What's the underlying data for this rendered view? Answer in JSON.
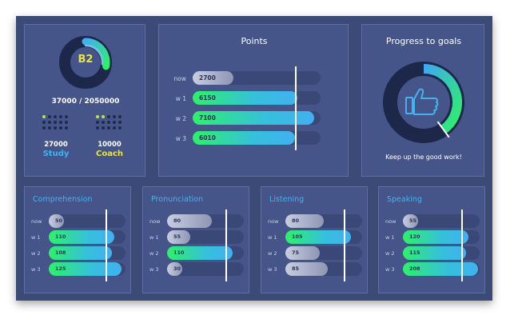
{
  "level": {
    "badge": "B2",
    "score_text": "37000 / 2050000",
    "ring_fraction": 0.28
  },
  "study": {
    "value": "27000",
    "label": "Study",
    "active_dots": 1,
    "total_dots": 15
  },
  "coach": {
    "value": "10000",
    "label": "Coach",
    "active_dots": 2,
    "total_dots": 15
  },
  "points": {
    "title": "Points",
    "rows": [
      {
        "label": "now",
        "value": "2700",
        "fill": 0.32,
        "style": "silver"
      },
      {
        "label": "w 1",
        "value": "6150",
        "fill": 0.82,
        "style": "gradient"
      },
      {
        "label": "w 2",
        "value": "7100",
        "fill": 0.95,
        "style": "gradient"
      },
      {
        "label": "w 3",
        "value": "6010",
        "fill": 0.8,
        "style": "gradient"
      }
    ],
    "goal_line": 0.8
  },
  "progress": {
    "title": "Progress to goals",
    "fraction": 0.4,
    "message": "Keep up the good work!",
    "icon": "thumbs-up-icon"
  },
  "skills": [
    {
      "title": "Comprehension",
      "goal_line": 0.74,
      "rows": [
        {
          "label": "now",
          "value": "50",
          "fill": 0.2,
          "style": "silver"
        },
        {
          "label": "w 1",
          "value": "110",
          "fill": 0.85,
          "style": "gradient"
        },
        {
          "label": "w 2",
          "value": "108",
          "fill": 0.82,
          "style": "gradient"
        },
        {
          "label": "w 3",
          "value": "125",
          "fill": 0.95,
          "style": "gradient"
        }
      ]
    },
    {
      "title": "Pronunciation",
      "goal_line": 0.76,
      "rows": [
        {
          "label": "now",
          "value": "80",
          "fill": 0.58,
          "style": "silver"
        },
        {
          "label": "w 1",
          "value": "55",
          "fill": 0.3,
          "style": "silver"
        },
        {
          "label": "w 2",
          "value": "110",
          "fill": 0.85,
          "style": "gradient"
        },
        {
          "label": "w 3",
          "value": "30",
          "fill": 0.2,
          "style": "silver"
        }
      ]
    },
    {
      "title": "Listening",
      "goal_line": 0.76,
      "rows": [
        {
          "label": "now",
          "value": "80",
          "fill": 0.5,
          "style": "silver"
        },
        {
          "label": "w 1",
          "value": "105",
          "fill": 0.85,
          "style": "gradient"
        },
        {
          "label": "w 2",
          "value": "75",
          "fill": 0.45,
          "style": "silver"
        },
        {
          "label": "w 3",
          "value": "85",
          "fill": 0.55,
          "style": "silver"
        }
      ]
    },
    {
      "title": "Speaking",
      "goal_line": 0.76,
      "rows": [
        {
          "label": "now",
          "value": "55",
          "fill": 0.2,
          "style": "silver"
        },
        {
          "label": "w 1",
          "value": "120",
          "fill": 0.85,
          "style": "gradient"
        },
        {
          "label": "w 2",
          "value": "115",
          "fill": 0.82,
          "style": "gradient"
        },
        {
          "label": "w 3",
          "value": "208",
          "fill": 0.98,
          "style": "gradient"
        }
      ]
    }
  ]
}
